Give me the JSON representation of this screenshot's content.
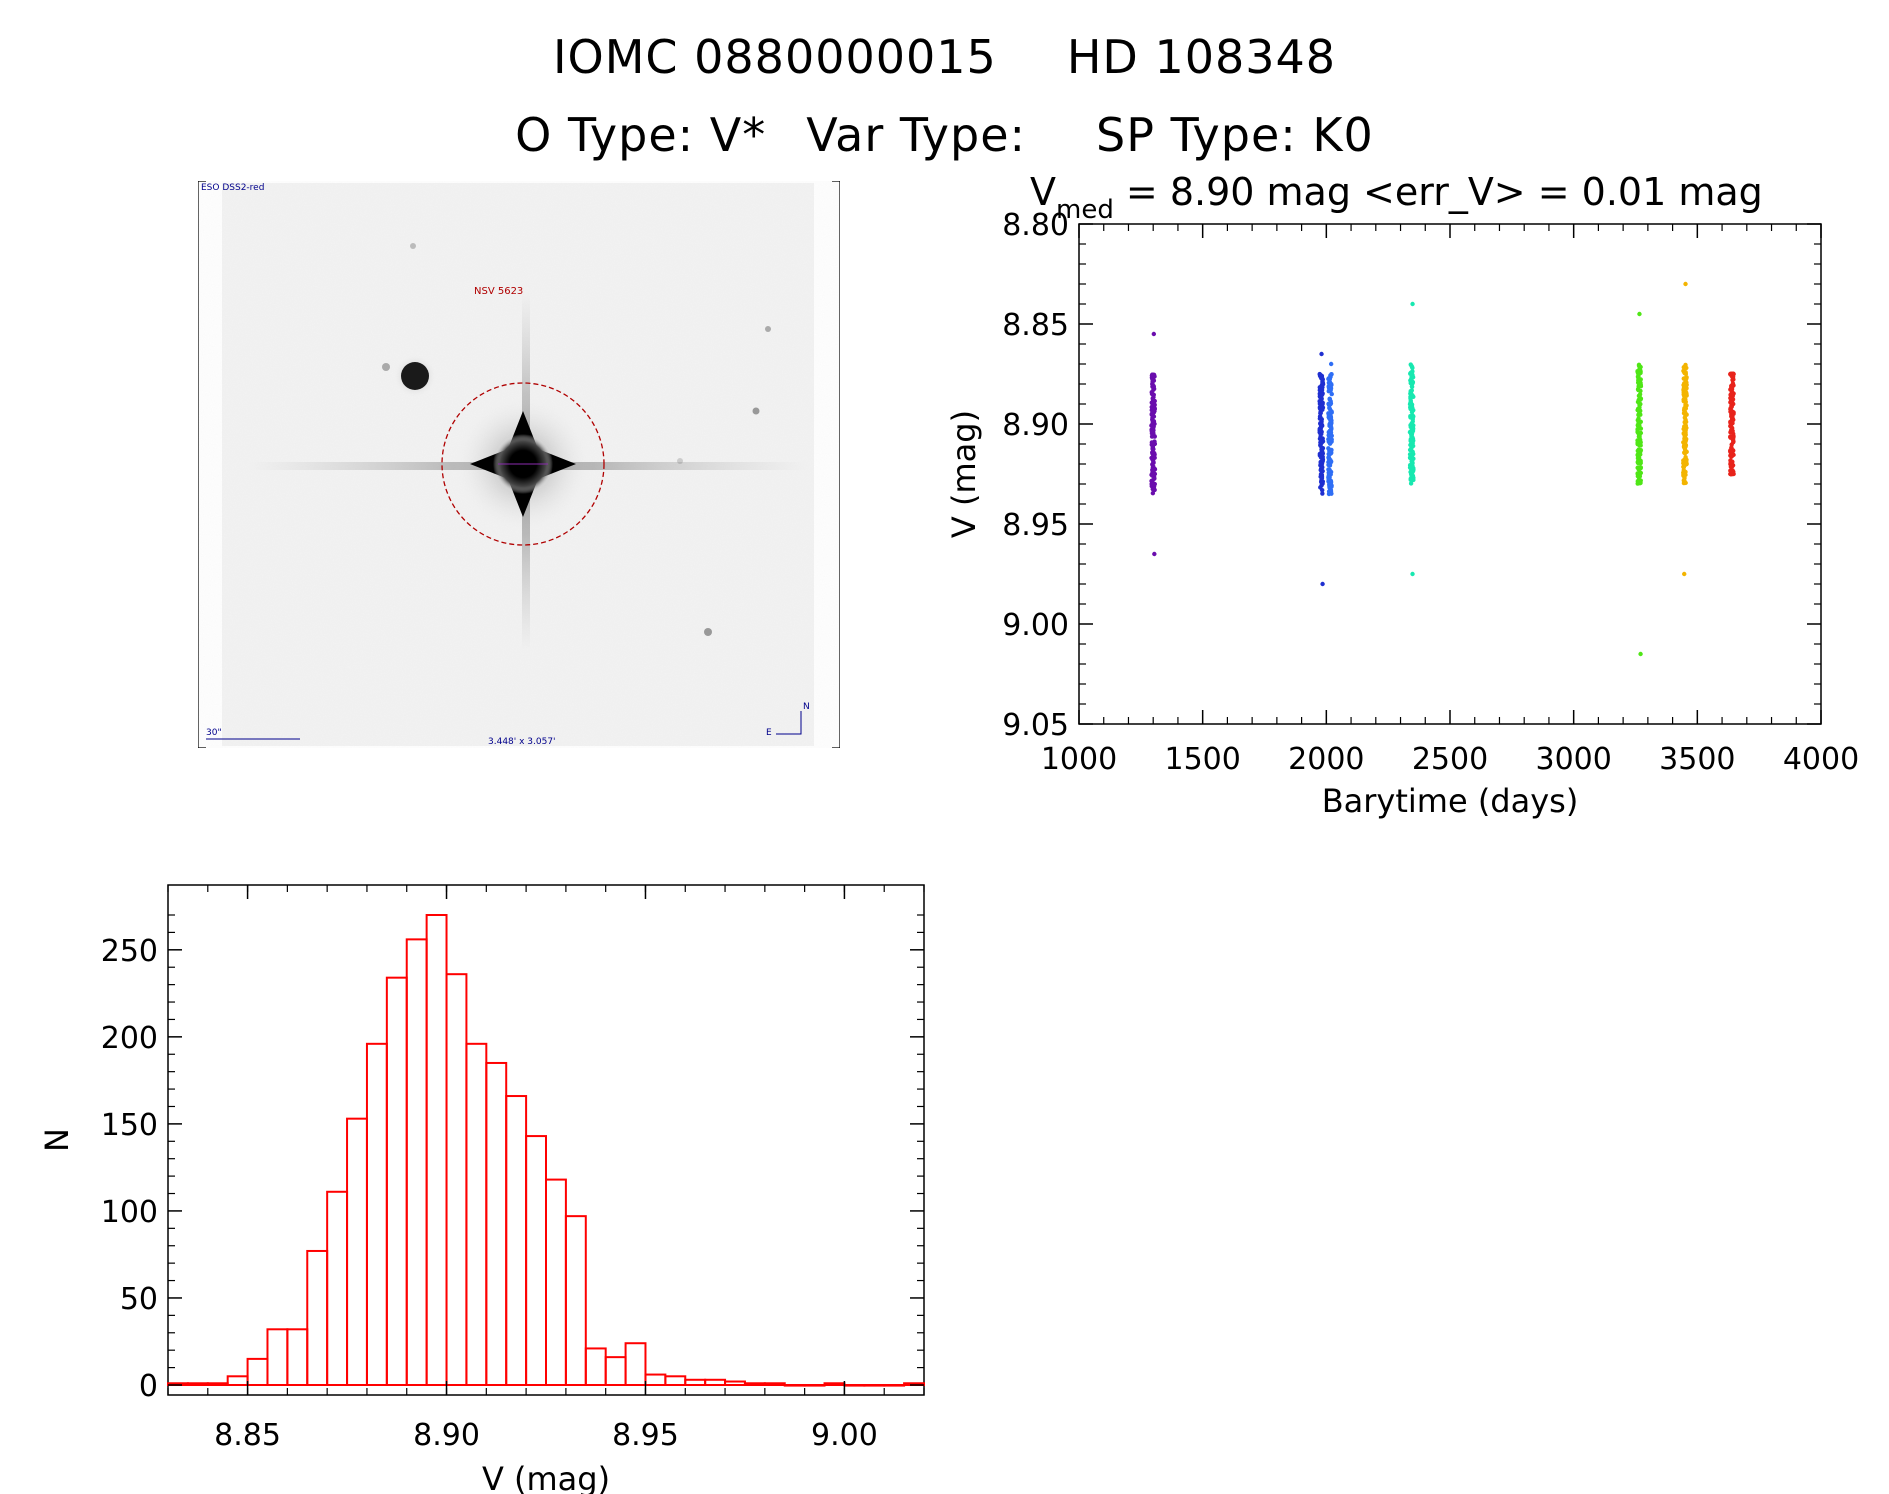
{
  "header": {
    "id_label": "IOMC 0880000015",
    "hd_label": "HD 108348",
    "otype": "O Type: V*",
    "vartype": "Var Type:",
    "sptype": "SP Type: K0"
  },
  "finder": {
    "survey_label": "ESO DSS2-red",
    "object_label": "NSV 5623",
    "scale_label": "30\"",
    "size_label": "3.448' x 3.057'",
    "north_label": "N",
    "east_label": "E"
  },
  "lightcurve": {
    "title_v": "V",
    "title_sub": "med",
    "title_rest": " = 8.90 mag <err_V> = 0.01 mag",
    "xlabel": "Barytime (days)",
    "ylabel": "V (mag)",
    "xticks": [
      "1000",
      "1500",
      "2000",
      "2500",
      "3000",
      "3500",
      "4000"
    ],
    "yticks": [
      "8.80",
      "8.85",
      "8.90",
      "8.95",
      "9.00",
      "9.05"
    ]
  },
  "histogram": {
    "xlabel": "V (mag)",
    "ylabel": "N",
    "xticks": [
      "8.85",
      "8.90",
      "8.95",
      "9.00"
    ],
    "yticks": [
      "0",
      "50",
      "100",
      "150",
      "200",
      "250"
    ]
  },
  "chart_data": [
    {
      "type": "scatter",
      "title": "Vmed = 8.90 mag <err_V> = 0.01 mag",
      "xlabel": "Barytime (days)",
      "ylabel": "V (mag)",
      "xlim": [
        1000,
        4000
      ],
      "ylim": [
        9.05,
        8.8
      ],
      "y_inverted": true,
      "series": [
        {
          "color": "#6a0dad",
          "x": 1300,
          "y_min": 8.855,
          "y_max": 8.965,
          "y_median": 8.905
        },
        {
          "color": "#1f2fd0",
          "x": 1980,
          "y_min": 8.865,
          "y_max": 8.98,
          "y_median": 8.905
        },
        {
          "color": "#2f6ef5",
          "x": 2015,
          "y_min": 8.87,
          "y_max": 8.935,
          "y_median": 8.905
        },
        {
          "color": "#18e8b0",
          "x": 2345,
          "y_min": 8.84,
          "y_max": 8.975,
          "y_median": 8.9
        },
        {
          "color": "#4fe616",
          "x": 3265,
          "y_min": 8.845,
          "y_max": 9.015,
          "y_median": 8.9
        },
        {
          "color": "#f3b400",
          "x": 3450,
          "y_min": 8.83,
          "y_max": 8.975,
          "y_median": 8.9
        },
        {
          "color": "#e8231b",
          "x": 3640,
          "y_min": 8.875,
          "y_max": 8.925,
          "y_median": 8.9
        }
      ]
    },
    {
      "type": "bar",
      "title": "",
      "xlabel": "V (mag)",
      "ylabel": "N",
      "xlim": [
        8.83,
        9.02
      ],
      "ylim": [
        0,
        280
      ],
      "bin_width": 0.005,
      "bin_starts": [
        8.83,
        8.835,
        8.84,
        8.845,
        8.85,
        8.855,
        8.86,
        8.865,
        8.87,
        8.875,
        8.88,
        8.885,
        8.89,
        8.895,
        8.9,
        8.905,
        8.91,
        8.915,
        8.92,
        8.925,
        8.93,
        8.935,
        8.94,
        8.945,
        8.95,
        8.955,
        8.96,
        8.965,
        8.97,
        8.975,
        8.98,
        8.985,
        8.99,
        8.995,
        9.0,
        9.005,
        9.01,
        9.015
      ],
      "values": [
        1,
        1,
        1,
        5,
        15,
        32,
        32,
        77,
        111,
        153,
        196,
        234,
        256,
        270,
        236,
        196,
        185,
        166,
        143,
        118,
        97,
        21,
        16,
        24,
        6,
        5,
        3,
        3,
        2,
        1,
        1,
        0,
        0,
        1,
        0,
        0,
        0,
        1
      ],
      "color": "#ff0000"
    }
  ]
}
